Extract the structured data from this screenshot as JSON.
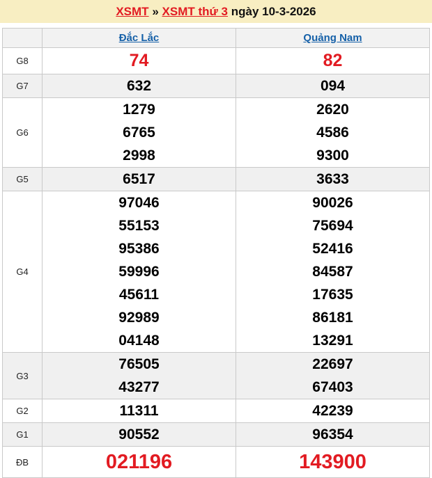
{
  "banner": {
    "link1": "XSMT",
    "separator": "»",
    "link2": "XSMT thứ 3",
    "suffix": "ngày 10-3-2026"
  },
  "columns": [
    "Đắc Lắc",
    "Quảng Nam"
  ],
  "colors": {
    "accent_red": "#e21b22",
    "link_blue": "#1560a8",
    "banner_bg": "#f8eec2",
    "row_shade": "#f0f0f0",
    "border": "#c9c9c9"
  },
  "rows": [
    {
      "label": "G8",
      "style": "red-large",
      "dac_lac": [
        "74"
      ],
      "quang_nam": [
        "82"
      ]
    },
    {
      "label": "G7",
      "style": "",
      "dac_lac": [
        "632"
      ],
      "quang_nam": [
        "094"
      ]
    },
    {
      "label": "G6",
      "style": "",
      "dac_lac": [
        "1279",
        "6765",
        "2998"
      ],
      "quang_nam": [
        "2620",
        "4586",
        "9300"
      ]
    },
    {
      "label": "G5",
      "style": "",
      "dac_lac": [
        "6517"
      ],
      "quang_nam": [
        "3633"
      ]
    },
    {
      "label": "G4",
      "style": "",
      "dac_lac": [
        "97046",
        "55153",
        "95386",
        "59996",
        "45611",
        "92989",
        "04148"
      ],
      "quang_nam": [
        "90026",
        "75694",
        "52416",
        "84587",
        "17635",
        "86181",
        "13291"
      ]
    },
    {
      "label": "G3",
      "style": "",
      "dac_lac": [
        "76505",
        "43277"
      ],
      "quang_nam": [
        "22697",
        "67403"
      ]
    },
    {
      "label": "G2",
      "style": "",
      "dac_lac": [
        "11311"
      ],
      "quang_nam": [
        "42239"
      ]
    },
    {
      "label": "G1",
      "style": "",
      "dac_lac": [
        "90552"
      ],
      "quang_nam": [
        "96354"
      ]
    },
    {
      "label": "ĐB",
      "style": "red-xlarge",
      "dac_lac": [
        "021196"
      ],
      "quang_nam": [
        "143900"
      ]
    }
  ]
}
